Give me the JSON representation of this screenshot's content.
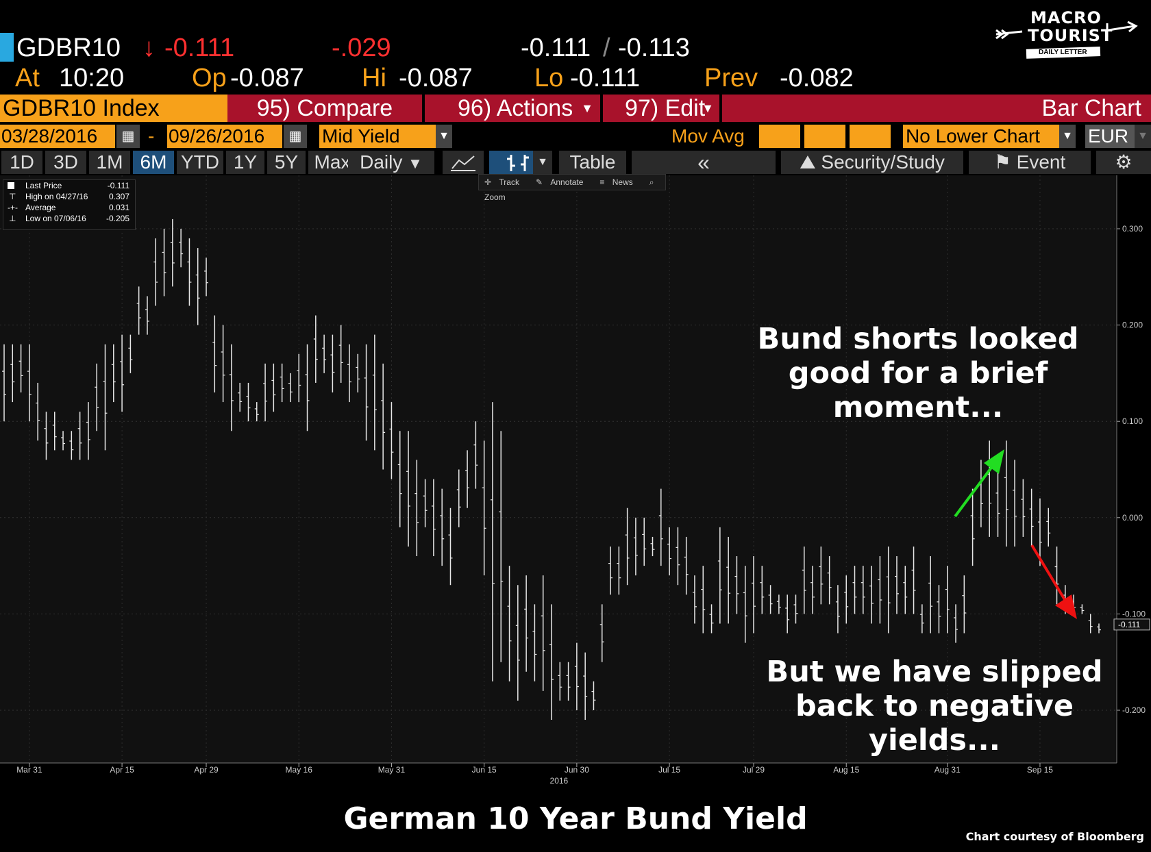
{
  "logo": {
    "line1": "MACRO",
    "line2": "TOURIST",
    "line3": "DAILY LETTER"
  },
  "quote": {
    "ticker": "GDBR10",
    "last": "-0.111",
    "last_arrow": "↓",
    "change": "-.029",
    "bid_ask": "-0.111",
    "bid_ask_sep": "/",
    "bid_ask2": "-0.113",
    "at_label": "At",
    "at_value": "10:20",
    "op_label": "Op",
    "op_value": "-0.087",
    "hi_label": "Hi",
    "hi_value": "-0.087",
    "lo_label": "Lo",
    "lo_value": "-0.111",
    "prev_label": "Prev",
    "prev_value": "-0.082"
  },
  "toolbar": {
    "security": "GDBR10 Index",
    "compare": "95) Compare",
    "actions": "96) Actions",
    "edit": "97) Edit",
    "chart_type": "Bar Chart"
  },
  "range": {
    "start": "03/28/2016",
    "dash": "-",
    "end": "09/26/2016",
    "field": "Mid Yield",
    "mov_avg": "Mov Avg",
    "lower_chart": "No Lower Chart",
    "currency": "EUR"
  },
  "periods": [
    "1D",
    "3D",
    "1M",
    "6M",
    "YTD",
    "1Y",
    "5Y",
    "Max"
  ],
  "period_selected": "6M",
  "frequency": "Daily",
  "tools": {
    "table": "Table",
    "collapse": "«",
    "security_study": "Security/Study",
    "event": "Event"
  },
  "mini_toolbar": {
    "track": "Track",
    "annotate": "Annotate",
    "news": "News",
    "zoom": "Zoom"
  },
  "legend": [
    {
      "label": "Last Price",
      "value": "-0.111"
    },
    {
      "label": "High on 04/27/16",
      "value": "0.307"
    },
    {
      "label": "Average",
      "value": "0.031"
    },
    {
      "label": "Low on 07/06/16",
      "value": "-0.205"
    }
  ],
  "annotations": {
    "top": [
      "Bund shorts looked",
      "good for a brief",
      "moment..."
    ],
    "bottom": [
      "But we have slipped",
      "back to negative",
      "yields..."
    ]
  },
  "caption": "German 10 Year Bund Yield",
  "credit": "Chart courtesy of Bloomberg",
  "colors": {
    "accent_orange": "#f7a11a",
    "accent_red": "#a8122b",
    "up_arrow": "#22dd22",
    "down_arrow": "#ee1111",
    "plot_bg": "#111111"
  },
  "chart_data": {
    "type": "bar",
    "ohlc_bar_chart": true,
    "title": "",
    "ylim": [
      -0.24,
      0.35
    ],
    "y_ticks": [
      0.3,
      0.2,
      0.1,
      0.0,
      -0.1,
      -0.2
    ],
    "y_tick_labels": [
      "0.300",
      "0.200",
      "0.100",
      "0.000",
      "-0.100",
      "-0.200"
    ],
    "last_price_label": "-0.111",
    "x_ticks": [
      "Mar 31",
      "Apr 15",
      "Apr 29",
      "May 16",
      "May 31",
      "Jun 15",
      "Jun 30",
      "Jul 15",
      "Jul 29",
      "Aug 15",
      "Aug 31",
      "Sep 15"
    ],
    "x_year_label": "2016",
    "x": [
      "03/28",
      "03/29",
      "03/30",
      "03/31",
      "04/01",
      "04/04",
      "04/05",
      "04/06",
      "04/07",
      "04/08",
      "04/11",
      "04/12",
      "04/13",
      "04/14",
      "04/15",
      "04/18",
      "04/19",
      "04/20",
      "04/21",
      "04/22",
      "04/25",
      "04/26",
      "04/27",
      "04/28",
      "04/29",
      "05/02",
      "05/03",
      "05/04",
      "05/05",
      "05/06",
      "05/09",
      "05/10",
      "05/11",
      "05/12",
      "05/13",
      "05/16",
      "05/17",
      "05/18",
      "05/19",
      "05/20",
      "05/23",
      "05/24",
      "05/25",
      "05/26",
      "05/27",
      "05/30",
      "05/31",
      "06/01",
      "06/02",
      "06/03",
      "06/06",
      "06/07",
      "06/08",
      "06/09",
      "06/10",
      "06/13",
      "06/14",
      "06/15",
      "06/16",
      "06/17",
      "06/20",
      "06/21",
      "06/22",
      "06/23",
      "06/24",
      "06/27",
      "06/28",
      "06/29",
      "06/30",
      "07/01",
      "07/04",
      "07/05",
      "07/06",
      "07/07",
      "07/08",
      "07/11",
      "07/12",
      "07/13",
      "07/14",
      "07/15",
      "07/18",
      "07/19",
      "07/20",
      "07/21",
      "07/22",
      "07/25",
      "07/26",
      "07/27",
      "07/28",
      "07/29",
      "08/01",
      "08/02",
      "08/03",
      "08/04",
      "08/05",
      "08/08",
      "08/09",
      "08/10",
      "08/11",
      "08/12",
      "08/15",
      "08/16",
      "08/17",
      "08/18",
      "08/19",
      "08/22",
      "08/23",
      "08/24",
      "08/25",
      "08/26",
      "08/29",
      "08/30",
      "08/31",
      "09/01",
      "09/02",
      "09/05",
      "09/06",
      "09/07",
      "09/08",
      "09/09",
      "09/12",
      "09/13",
      "09/14",
      "09/15",
      "09/16",
      "09/19",
      "09/20",
      "09/21",
      "09/22",
      "09/23",
      "09/26"
    ],
    "high": [
      0.18,
      0.18,
      0.18,
      0.18,
      0.14,
      0.11,
      0.11,
      0.09,
      0.09,
      0.11,
      0.12,
      0.16,
      0.18,
      0.18,
      0.19,
      0.19,
      0.24,
      0.23,
      0.29,
      0.3,
      0.31,
      0.3,
      0.29,
      0.28,
      0.27,
      0.21,
      0.2,
      0.18,
      0.14,
      0.14,
      0.12,
      0.16,
      0.16,
      0.16,
      0.15,
      0.17,
      0.18,
      0.21,
      0.19,
      0.19,
      0.2,
      0.18,
      0.17,
      0.18,
      0.19,
      0.16,
      0.12,
      0.09,
      0.09,
      0.06,
      0.04,
      0.04,
      0.03,
      0.01,
      0.05,
      0.07,
      0.1,
      0.08,
      0.12,
      0.09,
      -0.05,
      -0.07,
      -0.06,
      -0.09,
      -0.06,
      -0.09,
      -0.15,
      -0.15,
      -0.13,
      -0.14,
      -0.17,
      -0.09,
      -0.03,
      -0.03,
      0.01,
      0.0,
      0.0,
      -0.02,
      0.03,
      -0.01,
      -0.01,
      -0.02,
      -0.06,
      -0.05,
      -0.09,
      -0.01,
      -0.02,
      -0.04,
      -0.05,
      -0.04,
      -0.05,
      -0.07,
      -0.08,
      -0.08,
      -0.08,
      -0.03,
      -0.05,
      -0.03,
      -0.04,
      -0.07,
      -0.06,
      -0.05,
      -0.05,
      -0.05,
      -0.04,
      -0.03,
      -0.04,
      -0.05,
      -0.03,
      -0.09,
      -0.04,
      -0.07,
      -0.05,
      -0.09,
      -0.06,
      0.03,
      0.06,
      0.08,
      0.05,
      0.08,
      0.06,
      0.04,
      0.03,
      0.02,
      0.01,
      -0.03,
      -0.07,
      -0.08,
      -0.09,
      -0.1,
      -0.11
    ],
    "low": [
      0.1,
      0.12,
      0.13,
      0.1,
      0.08,
      0.06,
      0.07,
      0.07,
      0.06,
      0.06,
      0.06,
      0.09,
      0.07,
      0.12,
      0.11,
      0.15,
      0.19,
      0.19,
      0.22,
      0.23,
      0.24,
      0.26,
      0.22,
      0.2,
      0.23,
      0.13,
      0.12,
      0.09,
      0.11,
      0.1,
      0.1,
      0.1,
      0.11,
      0.12,
      0.12,
      0.12,
      0.09,
      0.14,
      0.15,
      0.13,
      0.14,
      0.12,
      0.13,
      0.08,
      0.07,
      0.05,
      0.04,
      -0.01,
      -0.03,
      -0.04,
      -0.01,
      -0.04,
      -0.05,
      -0.07,
      -0.01,
      0.01,
      0.03,
      -0.06,
      -0.17,
      -0.15,
      -0.17,
      -0.19,
      -0.16,
      -0.17,
      -0.18,
      -0.21,
      -0.19,
      -0.19,
      -0.2,
      -0.21,
      -0.2,
      -0.15,
      -0.08,
      -0.08,
      -0.07,
      -0.06,
      -0.05,
      -0.04,
      -0.05,
      -0.06,
      -0.07,
      -0.08,
      -0.11,
      -0.12,
      -0.12,
      -0.11,
      -0.11,
      -0.1,
      -0.13,
      -0.12,
      -0.1,
      -0.1,
      -0.1,
      -0.12,
      -0.11,
      -0.1,
      -0.1,
      -0.09,
      -0.09,
      -0.12,
      -0.11,
      -0.1,
      -0.1,
      -0.11,
      -0.11,
      -0.12,
      -0.1,
      -0.1,
      -0.1,
      -0.12,
      -0.12,
      -0.12,
      -0.12,
      -0.13,
      -0.12,
      -0.05,
      -0.01,
      -0.02,
      -0.02,
      -0.03,
      -0.03,
      -0.02,
      -0.03,
      -0.05,
      -0.03,
      -0.09,
      -0.1,
      -0.1,
      -0.1,
      -0.12,
      -0.12
    ]
  }
}
